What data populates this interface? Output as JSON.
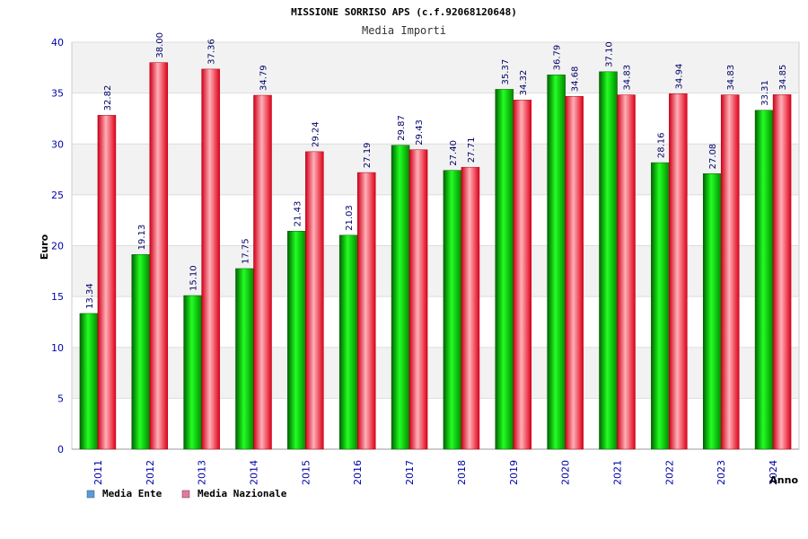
{
  "chart_data": {
    "type": "bar",
    "title": "MISSIONE SORRISO APS (c.f.92068120648)",
    "subtitle": "Media Importi",
    "xlabel": "Anno",
    "ylabel": "Euro",
    "ylim": [
      0,
      40
    ],
    "yticks": [
      0,
      5,
      10,
      15,
      20,
      25,
      30,
      35,
      40
    ],
    "categories": [
      "2011",
      "2012",
      "2013",
      "2014",
      "2015",
      "2016",
      "2017",
      "2018",
      "2019",
      "2020",
      "2021",
      "2022",
      "2023",
      "2024"
    ],
    "series": [
      {
        "name": "Media Ente",
        "values": [
          13.34,
          19.13,
          15.1,
          17.75,
          21.43,
          21.03,
          29.87,
          27.4,
          35.37,
          36.79,
          37.1,
          28.16,
          27.08,
          33.31
        ],
        "labels": [
          "13.34",
          "19.13",
          "15.10",
          "17.75",
          "21.43",
          "21.03",
          "29.87",
          "27.40",
          "35.37",
          "36.79",
          "37.10",
          "28.16",
          "27.08",
          "33.31"
        ],
        "color": "#00b400",
        "legend_color": "#5b9bd5"
      },
      {
        "name": "Media Nazionale",
        "values": [
          32.82,
          38.0,
          37.36,
          34.79,
          29.24,
          27.19,
          29.43,
          27.71,
          34.32,
          34.68,
          34.83,
          34.94,
          34.83,
          34.85
        ],
        "labels": [
          "32.82",
          "38.00",
          "37.36",
          "34.79",
          "29.24",
          "27.19",
          "29.43",
          "27.71",
          "34.32",
          "34.68",
          "34.83",
          "34.94",
          "34.83",
          "34.85"
        ],
        "color": "#ee0a1e",
        "legend_color": "#e07aa0"
      }
    ],
    "grid": true,
    "legend_position": "bottom-left"
  }
}
